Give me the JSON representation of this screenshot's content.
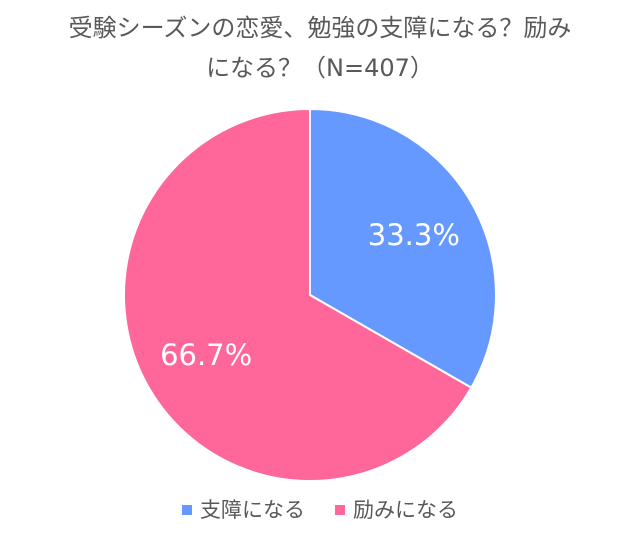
{
  "chart_data": {
    "type": "pie",
    "title_line1": "受験シーズンの恋愛、勉強の支障になる？励み",
    "title_line2": "になる？（N=407）",
    "categories": [
      "支障になる",
      "励みになる"
    ],
    "values": [
      33.3,
      66.7
    ],
    "data_labels": [
      "33.3%",
      "66.7%"
    ],
    "colors": [
      "#6699FF",
      "#FF6699"
    ],
    "legend_position": "bottom",
    "start_angle": "12 o'clock, clockwise"
  }
}
